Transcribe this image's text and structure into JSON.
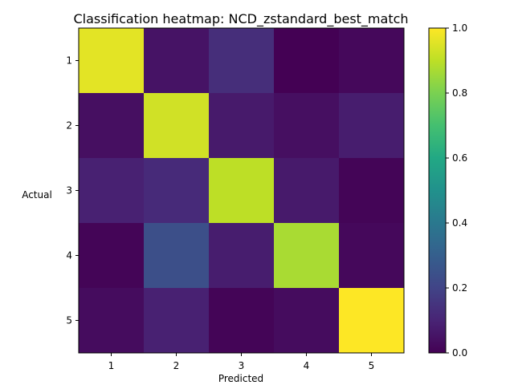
{
  "chart_data": {
    "type": "heatmap",
    "title": "Classification heatmap: NCD_zstandard_best_match",
    "xlabel": "Predicted",
    "ylabel": "Actual",
    "x_categories": [
      "1",
      "2",
      "3",
      "4",
      "5"
    ],
    "y_categories": [
      "1",
      "2",
      "3",
      "4",
      "5"
    ],
    "values": [
      [
        0.96,
        0.05,
        0.13,
        0.0,
        0.02
      ],
      [
        0.04,
        0.93,
        0.07,
        0.04,
        0.08
      ],
      [
        0.09,
        0.12,
        0.9,
        0.07,
        0.01
      ],
      [
        0.01,
        0.24,
        0.08,
        0.87,
        0.02
      ],
      [
        0.03,
        0.09,
        0.01,
        0.03,
        1.0
      ]
    ],
    "colormap": "viridis",
    "vmin": 0.0,
    "vmax": 1.0,
    "colorbar_ticks": [
      "0.0",
      "0.2",
      "0.4",
      "0.6",
      "0.8",
      "1.0"
    ],
    "grid": false
  }
}
